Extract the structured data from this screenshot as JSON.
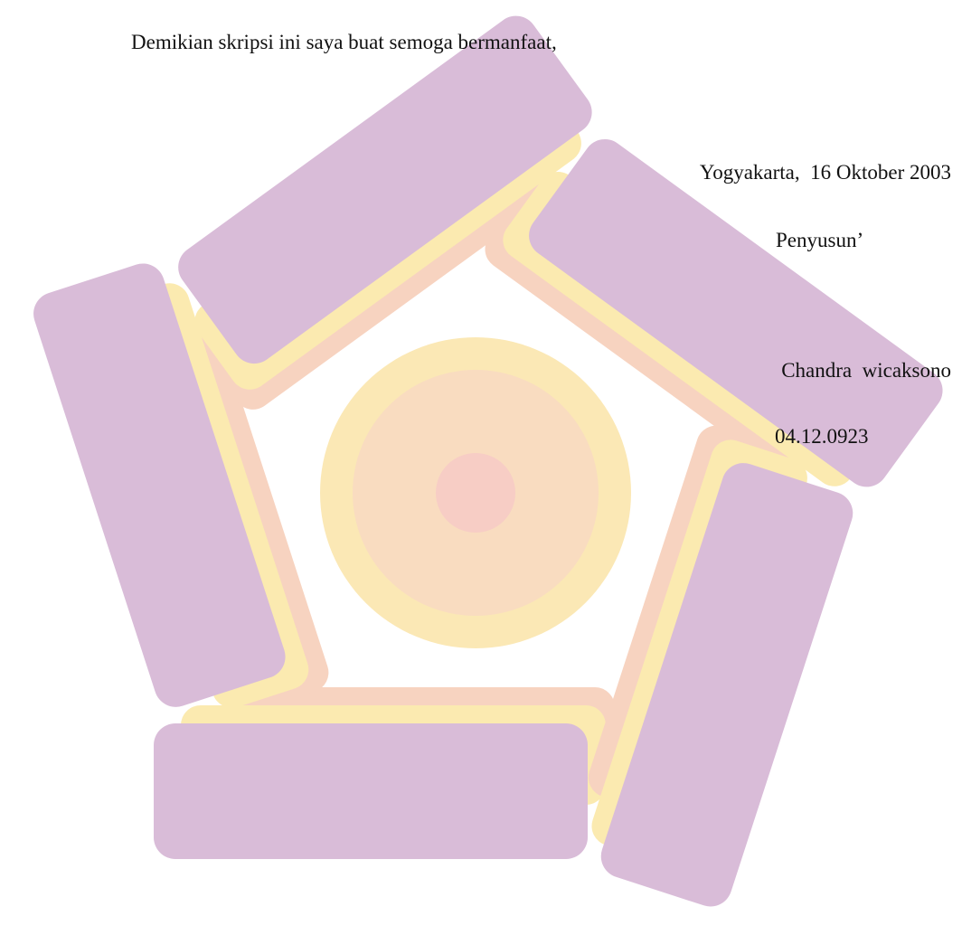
{
  "document": {
    "closing": "Demikian skripsi ini saya buat semoga bermanfaat,",
    "place_date": "Yogyakarta,  16 Oktober 2003",
    "role": "Penyusun’",
    "author": "Chandra  wicaksono",
    "student_id": "04.12.0923"
  }
}
